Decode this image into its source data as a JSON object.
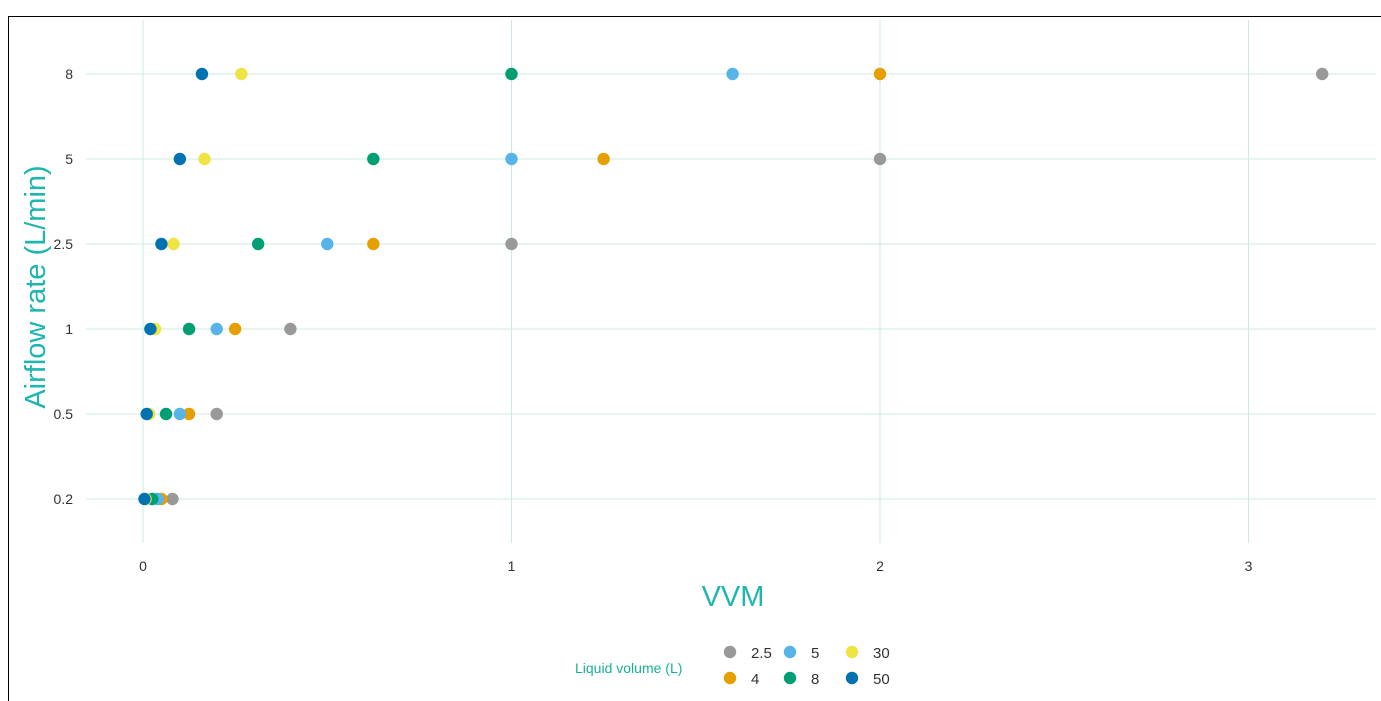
{
  "chart_data": {
    "type": "scatter",
    "xlabel": "VVM",
    "ylabel": "Airflow rate (L/min)",
    "x_ticks": [
      "0",
      "1",
      "2",
      "3"
    ],
    "x_range": [
      -0.1,
      3.35
    ],
    "y_ticks": [
      "0.2",
      "0.5",
      "1",
      "2.5",
      "5",
      "8"
    ],
    "y_axis": "categorical",
    "grid": true,
    "legend": {
      "title": "Liquid volume (L)",
      "placement": "bottom",
      "entries": [
        "2.5",
        "5",
        "30",
        "4",
        "8",
        "50"
      ]
    },
    "series": [
      {
        "name": "2.5",
        "color": "#999999",
        "points": [
          [
            0.08,
            "0.2"
          ],
          [
            0.2,
            "0.5"
          ],
          [
            0.4,
            "1"
          ],
          [
            1.0,
            "2.5"
          ],
          [
            2.0,
            "5"
          ],
          [
            3.2,
            "8"
          ]
        ]
      },
      {
        "name": "4",
        "color": "#E69F00",
        "points": [
          [
            0.05,
            "0.2"
          ],
          [
            0.125,
            "0.5"
          ],
          [
            0.25,
            "1"
          ],
          [
            0.625,
            "2.5"
          ],
          [
            1.25,
            "5"
          ],
          [
            2.0,
            "8"
          ]
        ]
      },
      {
        "name": "5",
        "color": "#56B4E9",
        "points": [
          [
            0.04,
            "0.2"
          ],
          [
            0.1,
            "0.5"
          ],
          [
            0.2,
            "1"
          ],
          [
            0.5,
            "2.5"
          ],
          [
            1.0,
            "5"
          ],
          [
            1.6,
            "8"
          ]
        ]
      },
      {
        "name": "8",
        "color": "#009E73",
        "points": [
          [
            0.025,
            "0.2"
          ],
          [
            0.0625,
            "0.5"
          ],
          [
            0.125,
            "1"
          ],
          [
            0.3125,
            "2.5"
          ],
          [
            0.625,
            "5"
          ],
          [
            1.0,
            "8"
          ]
        ]
      },
      {
        "name": "30",
        "color": "#F0E442",
        "points": [
          [
            0.007,
            "0.2"
          ],
          [
            0.017,
            "0.5"
          ],
          [
            0.033,
            "1"
          ],
          [
            0.083,
            "2.5"
          ],
          [
            0.167,
            "5"
          ],
          [
            0.267,
            "8"
          ]
        ]
      },
      {
        "name": "50",
        "color": "#0072B2",
        "points": [
          [
            0.004,
            "0.2"
          ],
          [
            0.01,
            "0.5"
          ],
          [
            0.02,
            "1"
          ],
          [
            0.05,
            "2.5"
          ],
          [
            0.1,
            "5"
          ],
          [
            0.16,
            "8"
          ]
        ]
      }
    ]
  }
}
